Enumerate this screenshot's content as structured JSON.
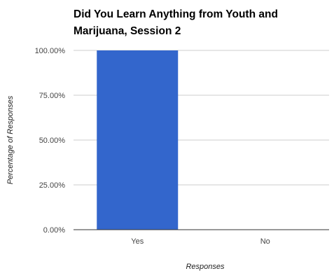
{
  "chart_data": {
    "type": "bar",
    "title_lines": [
      "Did You Learn Anything from Youth and",
      "Marijuana, Session 2"
    ],
    "xlabel": "Responses",
    "ylabel": "Percentage of Responses",
    "categories": [
      "Yes",
      "No"
    ],
    "values": [
      100,
      0
    ],
    "ylim": [
      0,
      100
    ],
    "yticks": [
      "0.00%",
      "25.00%",
      "50.00%",
      "75.00%",
      "100.00%"
    ],
    "grid": true,
    "bar_color": "#3366cc"
  }
}
